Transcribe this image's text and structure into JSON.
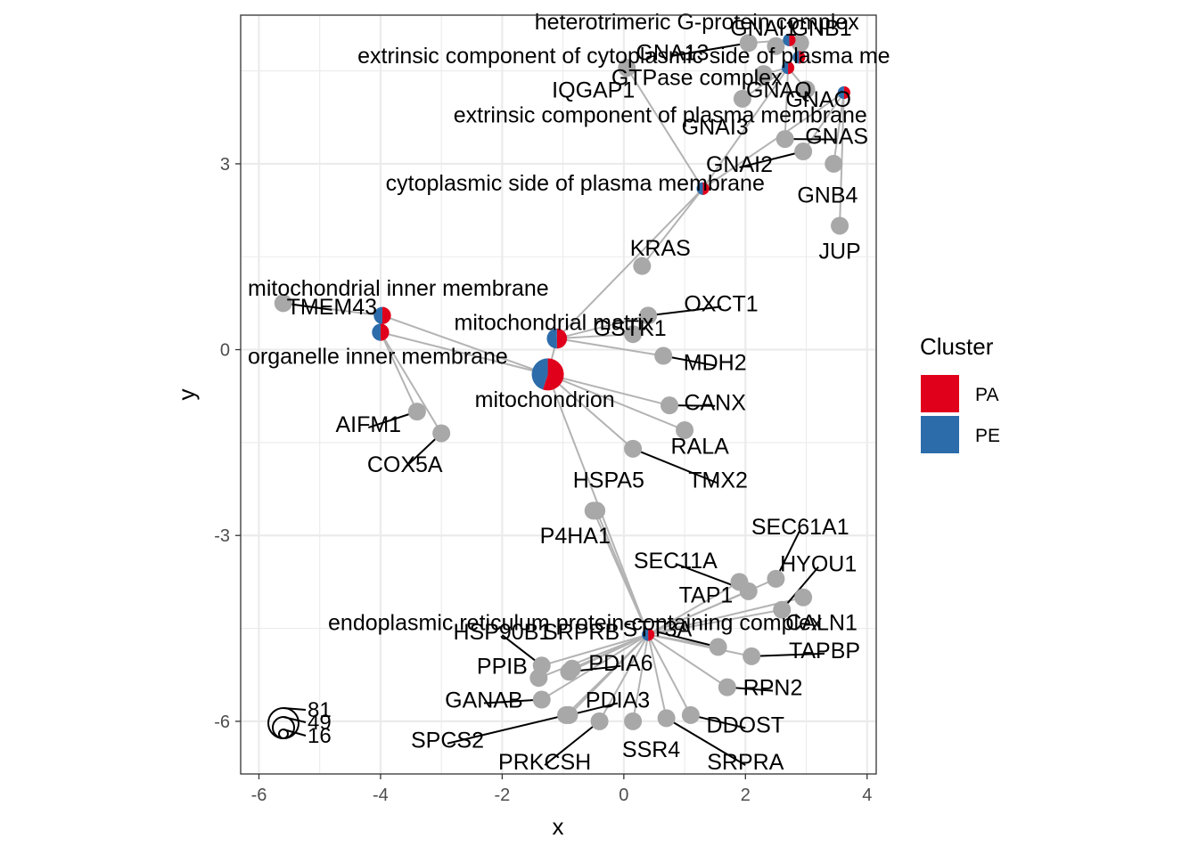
{
  "chart_data": {
    "type": "scatter",
    "subtype": "network-cnetplot",
    "xlabel": "x",
    "ylabel": "y",
    "xlim": [
      -6.3,
      4.15
    ],
    "ylim": [
      -6.85,
      5.4
    ],
    "x_ticks": [
      -6,
      -4,
      -2,
      0,
      2,
      4
    ],
    "x_tick_labels": [
      "-6",
      "-4",
      "-2",
      "0",
      "2",
      "4"
    ],
    "y_ticks": [
      -6,
      -3,
      0,
      3
    ],
    "y_tick_labels": [
      "-6",
      "-3",
      "0",
      "3"
    ],
    "grid": true,
    "legend": {
      "title": "Cluster",
      "placement": "right",
      "entries": [
        {
          "name": "PA",
          "color": "#E0001B"
        },
        {
          "name": "PE",
          "color": "#2C6CAA"
        }
      ]
    },
    "size_legend": {
      "values": [
        "81",
        "49",
        "16"
      ],
      "placement": "bottom-left"
    },
    "colors": {
      "gene": "#A8A8A8",
      "edge": "#B3B3B3",
      "PA": "#E0001B",
      "PE": "#2C6CAA",
      "grid": "#EBEBEB"
    },
    "categories": [
      {
        "id": "mito",
        "label": "mitochondrion",
        "x": -1.25,
        "y": -0.4,
        "size": 81,
        "pa": 0.55,
        "lx": -1.3,
        "ly": -0.8
      },
      {
        "id": "mim",
        "label": "mitochondrial inner membrane",
        "x": -3.97,
        "y": 0.55,
        "size": 16,
        "pa": 0.5,
        "lx": -4.35,
        "ly": 1.0
      },
      {
        "id": "oim",
        "label": "organelle inner membrane",
        "x": -4.0,
        "y": 0.28,
        "size": 16,
        "pa": 0.5,
        "lx": -4.35,
        "ly": -0.1
      },
      {
        "id": "mm",
        "label": "mitochondrial matrix",
        "x": -1.1,
        "y": 0.18,
        "size": 25,
        "pa": 0.5,
        "lx": -1.15,
        "ly": 0.45
      },
      {
        "id": "htg",
        "label": "heterotrimeric G-protein complex",
        "x": 2.72,
        "y": 5.0,
        "size": 6,
        "pa": 0.5,
        "lx": 1.2,
        "ly": 5.3
      },
      {
        "id": "extcyt",
        "label": "extrinsic component of cytoplasmic side of plasma me",
        "x": 2.88,
        "y": 4.72,
        "size": 6,
        "pa": 0.5,
        "lx": 0.0,
        "ly": 4.75
      },
      {
        "id": "gtp",
        "label": "GTPase complex",
        "x": 2.7,
        "y": 4.55,
        "size": 6,
        "pa": 0.5,
        "lx": 1.2,
        "ly": 4.4
      },
      {
        "id": "extpm",
        "label": "extrinsic component of plasma membrane",
        "x": 3.62,
        "y": 4.15,
        "size": 6,
        "pa": 0.5,
        "lx": 0.6,
        "ly": 3.8
      },
      {
        "id": "cytpm",
        "label": "cytoplasmic side of plasma membrane",
        "x": 1.3,
        "y": 2.6,
        "size": 6,
        "pa": 0.5,
        "lx": -0.8,
        "ly": 2.7
      },
      {
        "id": "er",
        "label": "endoplasmic reticulum protein-containing complex",
        "x": 0.4,
        "y": -4.6,
        "size": 6,
        "pa": 0.5,
        "lx": -0.8,
        "ly": -4.4
      }
    ],
    "genes": [
      {
        "label": "GNA13",
        "x": 2.05,
        "y": 4.95,
        "lx": 0.8,
        "ly": 4.8
      },
      {
        "label": "GNAI1",
        "x": 2.5,
        "y": 4.9,
        "lx": 2.3,
        "ly": 5.2
      },
      {
        "label": "GNB1",
        "x": 2.9,
        "y": 4.95,
        "lx": 3.25,
        "ly": 5.2
      },
      {
        "label": "IQGAP1",
        "x": 0.05,
        "y": 4.55,
        "lx": -0.5,
        "ly": 4.2
      },
      {
        "label": "GNAQ",
        "x": 2.3,
        "y": 4.45,
        "lx": 2.55,
        "ly": 4.2
      },
      {
        "label": "GNAI3",
        "x": 1.95,
        "y": 4.05,
        "lx": 1.5,
        "ly": 3.6
      },
      {
        "label": "GNAO",
        "x": 3.0,
        "y": 4.2,
        "lx": 3.2,
        "ly": 4.05
      },
      {
        "label": "GNAS",
        "x": 2.65,
        "y": 3.4,
        "lx": 3.5,
        "ly": 3.45
      },
      {
        "label": "GNAI2",
        "x": 2.95,
        "y": 3.2,
        "lx": 1.9,
        "ly": 3.0
      },
      {
        "label": "GNB4",
        "x": 3.45,
        "y": 3.0,
        "lx": 3.35,
        "ly": 2.5
      },
      {
        "label": "JUP",
        "x": 3.55,
        "y": 2.0,
        "lx": 3.55,
        "ly": 1.6
      },
      {
        "label": "KRAS",
        "x": 0.3,
        "y": 1.35,
        "lx": 0.6,
        "ly": 1.65
      },
      {
        "label": "TMEM43",
        "x": -5.6,
        "y": 0.75,
        "lx": -4.8,
        "ly": 0.7
      },
      {
        "label": "OXCT1",
        "x": 0.4,
        "y": 0.55,
        "lx": 1.6,
        "ly": 0.75
      },
      {
        "label": "GSTK1",
        "x": 0.15,
        "y": 0.25,
        "lx": 0.1,
        "ly": 0.35
      },
      {
        "label": "MDH2",
        "x": 0.65,
        "y": -0.1,
        "lx": 1.5,
        "ly": -0.2
      },
      {
        "label": "CANX",
        "x": 0.75,
        "y": -0.9,
        "lx": 1.5,
        "ly": -0.85
      },
      {
        "label": "AIFM1",
        "x": -3.4,
        "y": -1.0,
        "lx": -4.2,
        "ly": -1.2
      },
      {
        "label": "COX5A",
        "x": -3.0,
        "y": -1.35,
        "lx": -3.6,
        "ly": -1.85
      },
      {
        "label": "RALA",
        "x": 1.0,
        "y": -1.3,
        "lx": 1.25,
        "ly": -1.55
      },
      {
        "label": "TMX2",
        "x": 0.15,
        "y": -1.6,
        "lx": 1.55,
        "ly": -2.1
      },
      {
        "label": "HSPA5",
        "x": -0.45,
        "y": -2.6,
        "lx": -0.25,
        "ly": -2.1
      },
      {
        "label": "P4HA1",
        "x": -0.5,
        "y": -2.6,
        "lx": -0.8,
        "ly": -3.0
      },
      {
        "label": "SEC61A1",
        "x": 2.5,
        "y": -3.7,
        "lx": 2.9,
        "ly": -2.85
      },
      {
        "label": "SEC11A",
        "x": 2.05,
        "y": -3.9,
        "lx": 0.85,
        "ly": -3.4
      },
      {
        "label": "HYOU1",
        "x": 2.6,
        "y": -4.2,
        "lx": 3.2,
        "ly": -3.45
      },
      {
        "label": "TAP1",
        "x": 1.9,
        "y": -3.75,
        "lx": 1.35,
        "ly": -3.95
      },
      {
        "label": "CALN1",
        "x": 2.95,
        "y": -4.0,
        "lx": 3.25,
        "ly": -4.4
      },
      {
        "label": "TAPBP",
        "x": 2.1,
        "y": -4.95,
        "lx": 3.3,
        "ly": -4.85
      },
      {
        "label": "HSP90B1",
        "x": -1.35,
        "y": -5.1,
        "lx": -2.0,
        "ly": -4.55
      },
      {
        "label": "SRPRB",
        "x": -0.85,
        "y": -5.15,
        "lx": -0.7,
        "ly": -4.55
      },
      {
        "label": "STT3A",
        "x": 1.55,
        "y": -4.8,
        "lx": 0.55,
        "ly": -4.5
      },
      {
        "label": "PPIB",
        "x": -1.4,
        "y": -5.3,
        "lx": -2.0,
        "ly": -5.1
      },
      {
        "label": "PDIA6",
        "x": -0.9,
        "y": -5.2,
        "lx": -0.05,
        "ly": -5.05
      },
      {
        "label": "RPN2",
        "x": 1.7,
        "y": -5.45,
        "lx": 2.45,
        "ly": -5.45
      },
      {
        "label": "GANAB",
        "x": -1.35,
        "y": -5.65,
        "lx": -2.3,
        "ly": -5.65
      },
      {
        "label": "PDIA3",
        "x": -0.9,
        "y": -5.9,
        "lx": -0.1,
        "ly": -5.65
      },
      {
        "label": "DDOST",
        "x": 1.1,
        "y": -5.9,
        "lx": 2.0,
        "ly": -6.05
      },
      {
        "label": "SPCS2",
        "x": -0.95,
        "y": -5.9,
        "lx": -2.9,
        "ly": -6.3
      },
      {
        "label": "SSR4",
        "x": 0.15,
        "y": -6.0,
        "lx": 0.45,
        "ly": -6.45
      },
      {
        "label": "SRPRA",
        "x": 0.7,
        "y": -5.95,
        "lx": 2.0,
        "ly": -6.65
      },
      {
        "label": "PRKCSH",
        "x": -0.4,
        "y": -6.0,
        "lx": -1.3,
        "ly": -6.65
      }
    ]
  }
}
